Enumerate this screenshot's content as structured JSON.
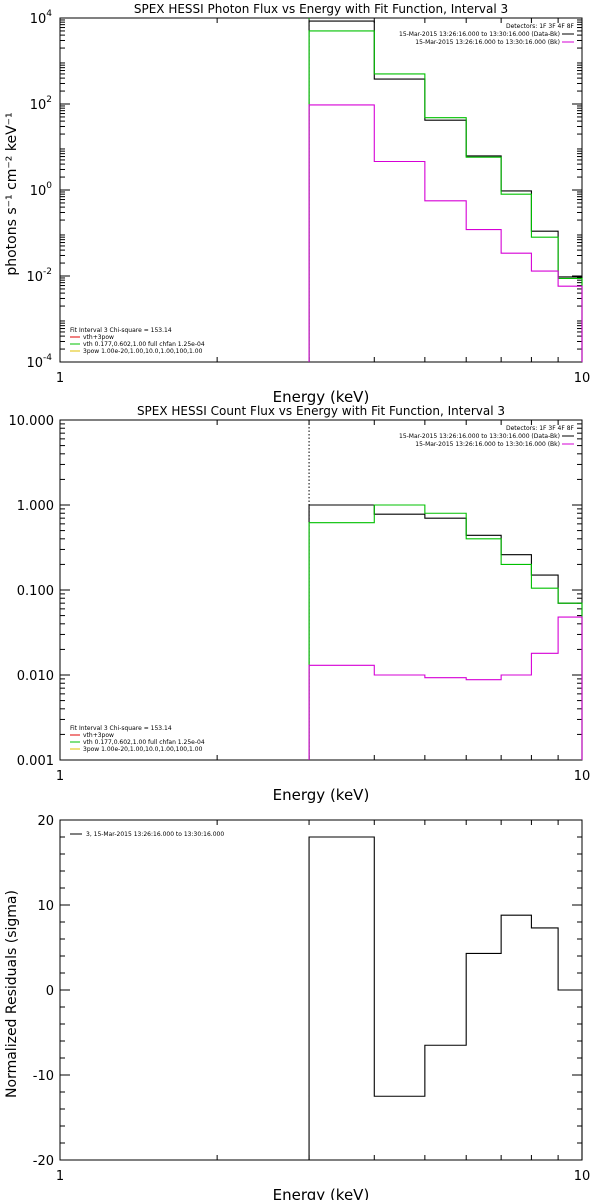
{
  "chart_data": [
    {
      "type": "line",
      "title": "SPEX HESSI Photon Flux vs Energy with Fit Function, Interval 3",
      "xlabel": "Energy (keV)",
      "ylabel": "photons s⁻¹ cm⁻² keV⁻¹",
      "xscale": "log",
      "yscale": "log",
      "xlim": [
        1,
        10
      ],
      "ylim": [
        0.0001,
        10000
      ],
      "x_ticks": [
        {
          "v": 1,
          "label": "1"
        },
        {
          "v": 10,
          "label": "10"
        }
      ],
      "y_ticks": [
        {
          "v": 10000,
          "base": "10",
          "exp": "4"
        },
        {
          "v": 100,
          "base": "10",
          "exp": "2"
        },
        {
          "v": 1,
          "base": "10",
          "exp": "0"
        },
        {
          "v": 0.01,
          "base": "10",
          "exp": "-2"
        },
        {
          "v": 0.0001,
          "base": "10",
          "exp": "-4"
        }
      ],
      "legend_top": {
        "header": "Detectors: 1F 3F 4F 8F",
        "entries": [
          {
            "text": "15-Mar-2015 13:26:16.000 to 13:30:16.000 (Data-Bk)",
            "color": "#000000"
          },
          {
            "text": "15-Mar-2015 13:26:16.000 to 13:30:16.000 (Bk)",
            "color": "#d600d6"
          }
        ]
      },
      "legend_bottom": {
        "header": "Fit Interval 3   Chi-square = 153.14",
        "entries": [
          {
            "text": "vth+3pow",
            "color": "#e00000"
          },
          {
            "text": "vth 0.177,0.602,1.00  full chfan 1.25e-04",
            "color": "#00c000"
          },
          {
            "text": "3pow 1.00e-20,1.00,10.0,1.00,100,1.00",
            "color": "#e0c000"
          }
        ]
      },
      "vline": {
        "x": 3.0,
        "color": "#00c000",
        "style": "dotted"
      },
      "bin_edges": [
        3.0,
        4.0,
        5.0,
        6.0,
        7.0,
        8.0,
        9.0,
        10.0
      ],
      "series": [
        {
          "name": "Data-Bk",
          "color": "#000000",
          "values": [
            8500,
            380,
            42,
            6.2,
            0.95,
            0.11,
            0.0095
          ],
          "bin_edges": [
            3.0,
            4.0,
            5.0,
            6.0,
            7.0,
            8.0,
            9.0,
            10.0
          ]
        },
        {
          "name": "vth+3pow",
          "color": "#00c000",
          "values": [
            5000,
            500,
            48,
            5.8,
            0.8,
            0.08,
            0.0088
          ],
          "bin_edges": [
            3.0,
            4.0,
            5.0,
            6.0,
            7.0,
            8.0,
            9.0,
            10.0
          ]
        },
        {
          "name": "Bk",
          "color": "#d600d6",
          "values": [
            95,
            4.6,
            0.56,
            0.12,
            0.034,
            0.013,
            0.0058
          ],
          "bin_edges": [
            3.0,
            4.0,
            5.0,
            6.0,
            7.0,
            8.0,
            9.0,
            10.0
          ]
        }
      ]
    },
    {
      "type": "line",
      "title": "SPEX HESSI Count Flux vs Energy with Fit Function, Interval 3",
      "xlabel": "Energy (keV)",
      "ylabel": "",
      "xscale": "log",
      "yscale": "log",
      "xlim": [
        1,
        10
      ],
      "ylim": [
        0.001,
        10
      ],
      "x_ticks": [
        {
          "v": 1,
          "label": "1"
        },
        {
          "v": 10,
          "label": "10"
        }
      ],
      "y_ticks": [
        {
          "v": 10,
          "label": "10.000"
        },
        {
          "v": 1,
          "label": "1.000"
        },
        {
          "v": 0.1,
          "label": "0.100"
        },
        {
          "v": 0.01,
          "label": "0.010"
        },
        {
          "v": 0.001,
          "label": "0.001"
        }
      ],
      "legend_top": {
        "header": "Detectors: 1F 3F 4F 8F",
        "entries": [
          {
            "text": "15-Mar-2015 13:26:16.000 to 13:30:16.000 (Data-Bk)",
            "color": "#000000"
          },
          {
            "text": "15-Mar-2015 13:26:16.000 to 13:30:16.000 (Bk)",
            "color": "#d600d6"
          }
        ]
      },
      "legend_bottom": {
        "header": "Fit Interval 3   Chi-square = 153.14",
        "entries": [
          {
            "text": "vth+3pow",
            "color": "#e00000"
          },
          {
            "text": "vth 0.177,0.602,1.00  full chfan 1.25e-04",
            "color": "#00c000"
          },
          {
            "text": "3pow 1.00e-20,1.00,10.0,1.00,100,1.00",
            "color": "#e0c000"
          }
        ]
      },
      "vline": {
        "x": 3.0,
        "color": "#000000",
        "style": "dotted"
      },
      "bin_edges": [
        3.0,
        4.0,
        5.0,
        6.0,
        7.0,
        8.0,
        9.0,
        10.0
      ],
      "series": [
        {
          "name": "Data-Bk",
          "color": "#000000",
          "values": [
            1.0,
            0.78,
            0.7,
            0.44,
            0.26,
            0.15,
            0.07
          ],
          "bin_edges": [
            3.0,
            4.0,
            5.0,
            6.0,
            7.0,
            8.0,
            9.0,
            10.0
          ]
        },
        {
          "name": "vth+3pow",
          "color": "#00c000",
          "values": [
            0.62,
            1.0,
            0.8,
            0.4,
            0.2,
            0.105,
            0.07
          ],
          "bin_edges": [
            3.0,
            4.0,
            5.0,
            6.0,
            7.0,
            8.0,
            9.0,
            10.0
          ]
        },
        {
          "name": "Bk",
          "color": "#d600d6",
          "values": [
            0.013,
            0.01,
            0.0093,
            0.0088,
            0.01,
            0.018,
            0.048
          ],
          "bin_edges": [
            3.0,
            4.0,
            5.0,
            6.0,
            7.0,
            8.0,
            9.0,
            10.0
          ]
        }
      ]
    },
    {
      "type": "line",
      "title": "",
      "xlabel": "Energy (keV)",
      "ylabel": "Normalized Residuals (sigma)",
      "xscale": "log",
      "yscale": "linear",
      "xlim": [
        1,
        10
      ],
      "ylim": [
        -20,
        20
      ],
      "x_ticks": [
        {
          "v": 1,
          "label": "1"
        },
        {
          "v": 10,
          "label": "10"
        }
      ],
      "y_ticks": [
        {
          "v": 20,
          "label": "20"
        },
        {
          "v": 10,
          "label": "10"
        },
        {
          "v": 0,
          "label": "0"
        },
        {
          "v": -10,
          "label": "-10"
        },
        {
          "v": -20,
          "label": "-20"
        }
      ],
      "legend_top_left": {
        "entries": [
          {
            "text": "3, 15-Mar-2015 13:26:16.000 to 13:30:16.000",
            "color": "#000000"
          }
        ]
      },
      "bin_edges": [
        3.0,
        4.0,
        5.0,
        6.0,
        7.0,
        8.0,
        9.0,
        10.0
      ],
      "series": [
        {
          "name": "",
          "color": "#000000",
          "values": [
            18,
            -12.5,
            -6.5,
            4.3,
            8.8,
            7.3,
            0.0
          ],
          "bin_edges": [
            3.0,
            4.0,
            5.0,
            6.0,
            7.0,
            8.0,
            9.0,
            10.0
          ]
        }
      ]
    }
  ]
}
